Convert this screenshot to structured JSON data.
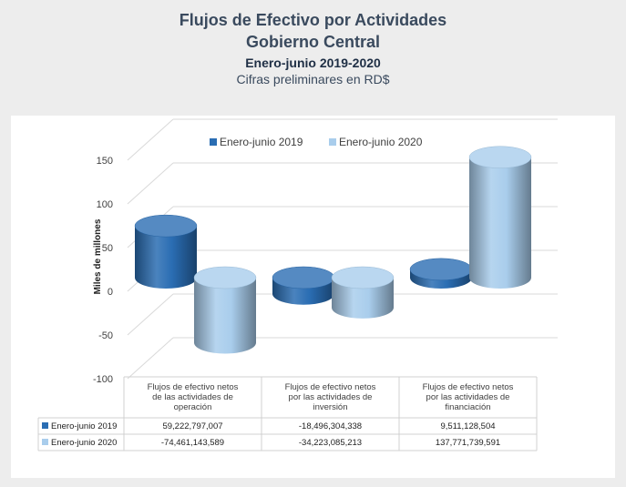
{
  "header": {
    "title": "Flujos de Efectivo por Actividades",
    "subtitle": "Gobierno Central",
    "period": "Enero-junio 2019-2020",
    "note": "Cifras preliminares en RD$"
  },
  "chart_data": {
    "type": "bar",
    "style": "3d-cylinder",
    "ylabel": "Miles de millones",
    "ylim": [
      -100,
      150
    ],
    "yticks": [
      -100,
      -50,
      0,
      50,
      100,
      150
    ],
    "grid": true,
    "legend_position": "top",
    "categories": [
      [
        "Flujos de efectivo netos",
        "de las actividades de",
        "operación"
      ],
      [
        "Flujos de efectivo netos",
        "por las actividades de",
        "inversión"
      ],
      [
        "Flujos de efectivo netos",
        "por las actividades de",
        "financiación"
      ]
    ],
    "series": [
      {
        "name": "Enero-junio 2019",
        "color": "#2a6db3",
        "values": [
          59.222797007,
          -18.496304338,
          9.511128504
        ],
        "table_values": [
          "59,222,797,007",
          "-18,496,304,338",
          "9,511,128,504"
        ]
      },
      {
        "name": "Enero-junio 2020",
        "color": "#a9cdec",
        "values": [
          -74.461143589,
          -34.223085213,
          137.771739591
        ],
        "table_values": [
          "-74,461,143,589",
          "-34,223,085,213",
          "137,771,739,591"
        ]
      }
    ]
  }
}
